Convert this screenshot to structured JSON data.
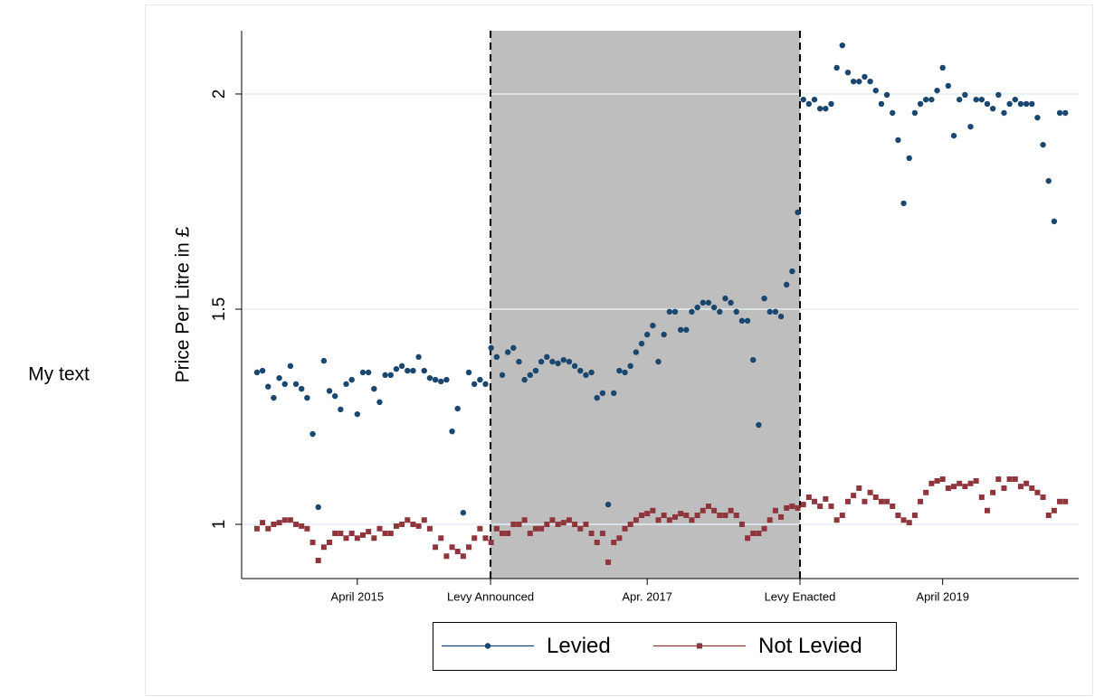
{
  "side_text": "My text",
  "chart_data": {
    "type": "line",
    "ylabel": "Price Per Litre in £",
    "x": [
      0,
      2,
      4,
      6,
      8,
      10,
      12,
      14,
      16,
      18,
      20,
      22,
      24,
      26,
      28,
      30,
      32,
      34,
      36,
      38,
      40,
      42,
      44,
      46,
      48,
      50,
      52,
      54,
      56,
      58,
      60,
      62,
      64,
      66,
      68,
      70,
      72,
      74,
      76,
      78,
      80,
      82,
      84,
      86,
      88,
      90,
      92,
      94,
      96,
      98,
      100,
      102,
      104,
      106,
      108,
      110,
      112,
      114,
      116,
      118,
      120,
      122,
      124,
      126,
      128,
      130,
      132,
      134,
      136,
      138,
      140,
      142,
      144,
      146,
      148,
      150,
      152,
      154,
      156,
      158,
      160,
      162,
      164,
      166,
      168,
      170,
      172,
      174,
      176,
      178,
      180,
      182,
      184,
      186,
      188,
      190,
      192,
      194,
      196,
      198,
      200,
      202,
      204,
      206,
      208,
      210,
      212,
      214,
      216,
      218,
      220,
      222,
      224,
      226,
      228,
      230,
      232,
      234,
      236,
      238,
      240,
      242,
      244,
      246,
      248,
      250,
      252,
      254,
      256,
      258,
      260,
      262,
      264,
      266,
      268,
      270,
      272,
      274,
      276,
      278,
      280,
      282,
      284,
      286,
      288,
      290
    ],
    "xlim": [
      -5.5,
      294.8
    ],
    "xticks": [
      {
        "value": 36,
        "label": "April 2015"
      },
      {
        "value": 83.8,
        "label": "Levy Announced"
      },
      {
        "value": 140,
        "label": "Apr. 2017"
      },
      {
        "value": 194.8,
        "label": "Levy Enacted"
      },
      {
        "value": 246,
        "label": "April 2019"
      }
    ],
    "ylim": [
      0.874,
      2.147
    ],
    "yticks": [
      1,
      1.5,
      2
    ],
    "grid": true,
    "shaded_span": [
      83.8,
      194.8
    ],
    "shade_color": "#bebebe",
    "legend_position": "bottom",
    "series": [
      {
        "name": "Levied",
        "color": "#1a476f",
        "marker": "circle",
        "values": [
          1.353,
          1.357,
          1.32,
          1.294,
          1.34,
          1.326,
          1.368,
          1.326,
          1.315,
          1.294,
          1.21,
          1.04,
          1.38,
          1.31,
          1.298,
          1.267,
          1.326,
          1.336,
          1.256,
          1.353,
          1.353,
          1.315,
          1.284,
          1.347,
          1.347,
          1.361,
          1.368,
          1.357,
          1.357,
          1.389,
          1.357,
          1.34,
          1.336,
          1.332,
          1.336,
          1.216,
          1.269,
          1.027,
          1.353,
          1.326,
          1.336,
          1.326,
          1.41,
          1.389,
          1.347,
          1.4,
          1.41,
          1.378,
          1.336,
          1.347,
          1.357,
          1.378,
          1.389,
          1.378,
          1.374,
          1.382,
          1.378,
          1.368,
          1.357,
          1.347,
          1.353,
          1.294,
          1.305,
          1.046,
          1.305,
          1.357,
          1.353,
          1.368,
          1.4,
          1.42,
          1.441,
          1.462,
          1.378,
          1.441,
          1.494,
          1.494,
          1.452,
          1.452,
          1.494,
          1.504,
          1.515,
          1.515,
          1.504,
          1.494,
          1.525,
          1.515,
          1.494,
          1.473,
          1.473,
          1.382,
          1.231,
          1.525,
          1.494,
          1.494,
          1.483,
          1.557,
          1.588,
          1.725,
          1.987,
          1.977,
          1.987,
          1.966,
          1.966,
          1.977,
          2.061,
          2.113,
          2.05,
          2.029,
          2.029,
          2.04,
          2.029,
          2.008,
          1.977,
          1.998,
          1.956,
          1.893,
          1.746,
          1.851,
          1.956,
          1.977,
          1.987,
          1.987,
          2.008,
          2.061,
          2.019,
          1.903,
          1.987,
          1.998,
          1.924,
          1.987,
          1.987,
          1.977,
          1.966,
          1.998,
          1.956,
          1.977,
          1.987,
          1.977,
          1.977,
          1.977,
          1.945,
          1.882,
          1.798,
          1.704,
          1.956,
          1.956
        ]
      },
      {
        "name": "Not Levied",
        "color": "#90353b",
        "marker": "square",
        "values": [
          0.99,
          1.004,
          0.99,
          1.0,
          1.004,
          1.01,
          1.01,
          1.0,
          0.996,
          0.99,
          0.958,
          0.916,
          0.947,
          0.958,
          0.979,
          0.979,
          0.968,
          0.979,
          0.968,
          0.975,
          0.983,
          0.968,
          0.99,
          0.979,
          0.979,
          0.996,
          1.0,
          1.01,
          1.0,
          0.996,
          1.01,
          0.99,
          0.947,
          0.968,
          0.926,
          0.947,
          0.937,
          0.926,
          0.947,
          0.968,
          0.99,
          0.968,
          0.958,
          0.99,
          0.979,
          0.979,
          1.0,
          1.0,
          1.01,
          0.979,
          0.99,
          0.99,
          1.0,
          1.01,
          1.0,
          1.004,
          1.01,
          1.0,
          0.99,
          1.0,
          0.979,
          0.958,
          0.979,
          0.912,
          0.958,
          0.968,
          0.99,
          1.0,
          1.01,
          1.021,
          1.025,
          1.032,
          1.01,
          1.021,
          1.01,
          1.017,
          1.025,
          1.021,
          1.01,
          1.021,
          1.032,
          1.042,
          1.032,
          1.021,
          1.021,
          1.032,
          1.021,
          1.0,
          0.968,
          0.979,
          0.979,
          0.99,
          1.01,
          1.032,
          1.017,
          1.038,
          1.042,
          1.038,
          1.046,
          1.063,
          1.053,
          1.042,
          1.059,
          1.042,
          1.01,
          1.021,
          1.053,
          1.067,
          1.084,
          1.053,
          1.074,
          1.063,
          1.053,
          1.053,
          1.042,
          1.021,
          1.01,
          1.004,
          1.021,
          1.053,
          1.074,
          1.095,
          1.101,
          1.105,
          1.084,
          1.088,
          1.095,
          1.088,
          1.095,
          1.101,
          1.063,
          1.032,
          1.074,
          1.105,
          1.084,
          1.105,
          1.105,
          1.088,
          1.095,
          1.084,
          1.074,
          1.063,
          1.021,
          1.032,
          1.053,
          1.053
        ]
      }
    ]
  }
}
